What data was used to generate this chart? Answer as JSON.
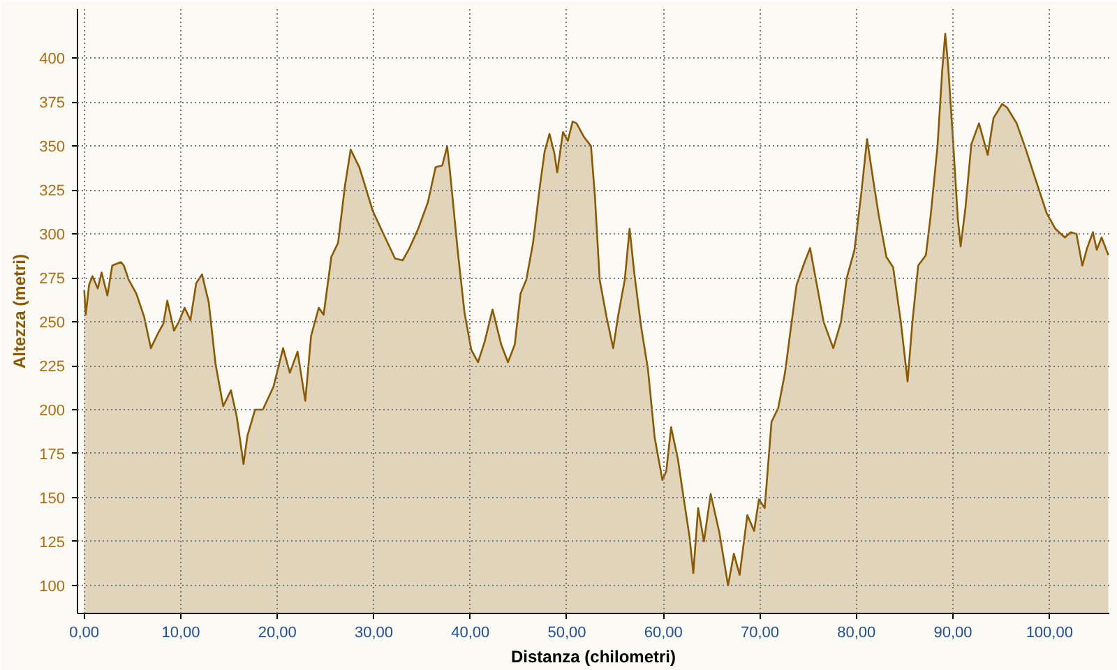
{
  "chart_data": {
    "type": "area",
    "xlabel": "Distanza (chilometri)",
    "ylabel": "Altezza (metri)",
    "xlim": [
      -0.7,
      106.2
    ],
    "ylim": [
      84,
      428
    ],
    "xticks": [
      {
        "value": 0,
        "label": "0,00"
      },
      {
        "value": 10,
        "label": "10,00"
      },
      {
        "value": 20,
        "label": "20,00"
      },
      {
        "value": 30,
        "label": "30,00"
      },
      {
        "value": 40,
        "label": "40,00"
      },
      {
        "value": 50,
        "label": "50,00"
      },
      {
        "value": 60,
        "label": "60,00"
      },
      {
        "value": 70,
        "label": "70,00"
      },
      {
        "value": 80,
        "label": "80,00"
      },
      {
        "value": 90,
        "label": "90,00"
      },
      {
        "value": 100,
        "label": "100,00"
      }
    ],
    "yticks": [
      100,
      125,
      150,
      175,
      200,
      225,
      250,
      275,
      300,
      325,
      350,
      375,
      400
    ],
    "grid": true,
    "line_style": "solid",
    "marker": "none",
    "series": [
      {
        "color": "#8b5a00",
        "x": [
          0,
          0.15,
          0.5,
          0.85,
          1.4,
          1.8,
          2.4,
          2.9,
          3.8,
          4.1,
          4.6,
          5.4,
          6.2,
          6.9,
          7.6,
          8.2,
          8.6,
          9.3,
          9.8,
          10.4,
          11.0,
          11.6,
          12.2,
          12.9,
          13.6,
          14.4,
          15.2,
          15.8,
          16.5,
          16.9,
          17.7,
          18.5,
          19.6,
          20.6,
          21.3,
          22.1,
          22.9,
          23.5,
          24.3,
          24.8,
          25.6,
          26.3,
          27.0,
          27.6,
          28.5,
          29.9,
          31.0,
          32.2,
          33.0,
          33.7,
          34.6,
          35.6,
          36.4,
          37.1,
          37.6,
          37.9,
          38.7,
          39.4,
          40.1,
          40.8,
          41.5,
          42.3,
          43.2,
          43.9,
          44.6,
          45.2,
          45.8,
          46.5,
          47.2,
          47.7,
          48.2,
          48.7,
          49.0,
          49.6,
          50.1,
          50.6,
          51.0,
          51.8,
          52.5,
          52.9,
          53.4,
          54.1,
          54.8,
          55.3,
          56.0,
          56.5,
          57.0,
          57.7,
          58.4,
          59.1,
          59.9,
          60.3,
          60.8,
          61.5,
          62.2,
          62.7,
          63.1,
          63.6,
          64.2,
          64.9,
          65.8,
          66.7,
          67.3,
          67.9,
          68.7,
          69.4,
          69.9,
          70.5,
          71.2,
          71.9,
          72.6,
          73.1,
          73.8,
          74.5,
          75.2,
          75.9,
          76.6,
          77.6,
          78.4,
          79.0,
          79.8,
          80.5,
          81.1,
          81.7,
          82.3,
          83.1,
          83.8,
          84.6,
          85.3,
          85.8,
          86.4,
          87.2,
          87.7,
          88.4,
          88.9,
          89.2,
          89.5,
          90.0,
          90.5,
          90.8,
          91.3,
          91.9,
          92.7,
          93.1,
          93.6,
          94.2,
          95.1,
          95.6,
          96.6,
          97.5,
          98.5,
          99.7,
          100.6,
          101.6,
          102.2,
          102.8,
          103.4,
          103.9,
          104.5,
          104.9,
          105.4,
          106.1
        ],
        "values": [
          268,
          254,
          271,
          276,
          269,
          278,
          265,
          282,
          284,
          282,
          274,
          266,
          253,
          235,
          243,
          249,
          262,
          245,
          250,
          258,
          251,
          272,
          277,
          261,
          226,
          202,
          211,
          196,
          169,
          185,
          200,
          200,
          213,
          235,
          221,
          233,
          205,
          242,
          258,
          254,
          287,
          295,
          327,
          348,
          338,
          313,
          300,
          286,
          285,
          292,
          303,
          318,
          338,
          339,
          350,
          335,
          290,
          255,
          234,
          227,
          239,
          257,
          237,
          227,
          237,
          266,
          274,
          295,
          327,
          347,
          357,
          346,
          335,
          358,
          353,
          364,
          363,
          355,
          350,
          322,
          274,
          253,
          235,
          253,
          274,
          303,
          277,
          247,
          223,
          184,
          160,
          165,
          190,
          172,
          146,
          128,
          107,
          144,
          125,
          152,
          130,
          100,
          118,
          106,
          140,
          131,
          149,
          144,
          193,
          201,
          221,
          242,
          271,
          282,
          292,
          271,
          250,
          235,
          250,
          275,
          291,
          323,
          354,
          332,
          311,
          287,
          281,
          250,
          216,
          250,
          282,
          288,
          311,
          350,
          394,
          414,
          396,
          354,
          309,
          293,
          315,
          351,
          363,
          355,
          345,
          366,
          374,
          372,
          363,
          349,
          332,
          312,
          303,
          298,
          301,
          300,
          282,
          292,
          301,
          291,
          298,
          288
        ]
      }
    ]
  }
}
